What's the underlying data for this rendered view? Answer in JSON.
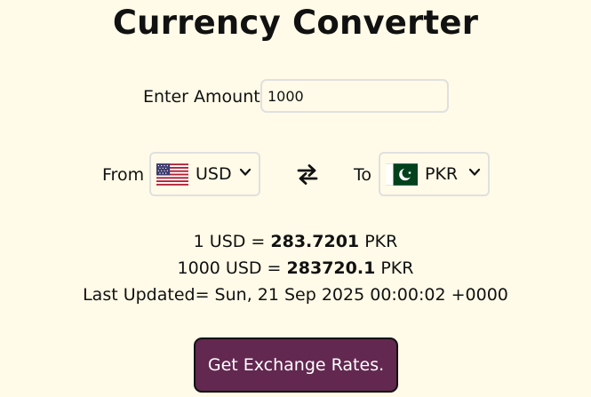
{
  "title": "Currency Converter",
  "amount": {
    "label": "Enter Amount",
    "value": "1000"
  },
  "from": {
    "label": "From",
    "currency": "USD",
    "flag_icon": "us-flag-icon"
  },
  "to": {
    "label": "To",
    "currency": "PKR",
    "flag_icon": "pk-flag-icon"
  },
  "swap_icon": "swap-arrows-icon",
  "result": {
    "unit_prefix": "1 USD = ",
    "unit_rate": "283.7201",
    "unit_suffix": " PKR",
    "total_prefix": "1000 USD = ",
    "total_value": "283720.1",
    "total_suffix": " PKR",
    "last_updated_label": "Last Updated= ",
    "last_updated_value": "Sun, 21 Sep 2025 00:00:02 +0000"
  },
  "button": {
    "label": "Get Exchange Rates."
  },
  "colors": {
    "background": "#fffbe8",
    "button": "#622850",
    "border": "#e0e0e0",
    "pk_green": "#01411c",
    "us_red": "#b22234",
    "us_blue": "#3c3b6e"
  }
}
